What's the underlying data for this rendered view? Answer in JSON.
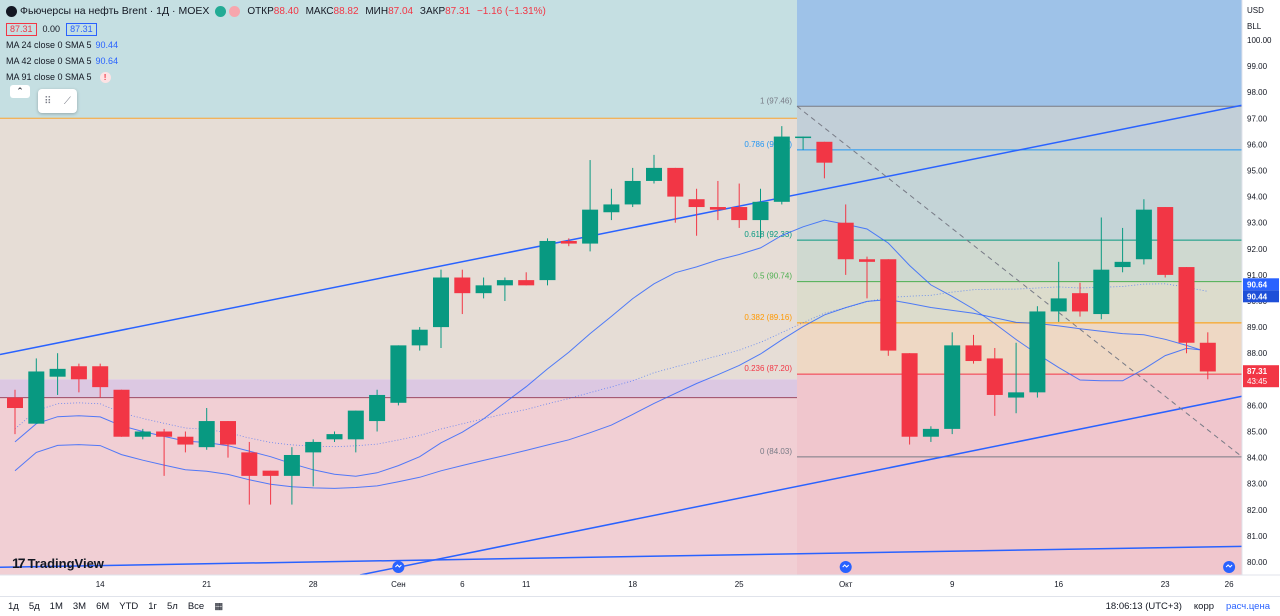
{
  "header": {
    "title": "Фьючерсы на нефть Brent · 1Д · MOEX",
    "ohlc": [
      {
        "label": "ОТКР",
        "value": "88.40"
      },
      {
        "label": "МАКС",
        "value": "88.82"
      },
      {
        "label": "МИН",
        "value": "87.04"
      },
      {
        "label": "ЗАКР",
        "value": "87.31"
      }
    ],
    "change": "−1.16 (−1.31%)",
    "bid": "87.31",
    "spread": "0.00",
    "ask": "87.31"
  },
  "indicators": [
    {
      "label": "MA 24 close 0 SMA 5",
      "value": "90.44"
    },
    {
      "label": "MA 42 close 0 SMA 5",
      "value": "90.64"
    },
    {
      "label": "MA 91 close 0 SMA 5",
      "value": "!"
    }
  ],
  "axis": {
    "currency": "USD",
    "unit": "BLL",
    "ticks": [
      "100.00",
      "99.00",
      "98.00",
      "97.00",
      "96.00",
      "95.00",
      "94.00",
      "93.00",
      "92.00",
      "91.00",
      "90.00",
      "89.00",
      "88.00",
      "87.00",
      "86.00",
      "85.00",
      "84.00",
      "83.00",
      "82.00",
      "81.00",
      "80.00"
    ],
    "last_price": "87.31",
    "countdown": "43:45",
    "ma_label_1": "90.64",
    "ma_label_2": "90.44"
  },
  "xaxis": {
    "labels": [
      {
        "text": "14",
        "i": 4
      },
      {
        "text": "21",
        "i": 9
      },
      {
        "text": "28",
        "i": 14
      },
      {
        "text": "Сен",
        "i": 18
      },
      {
        "text": "6",
        "i": 21
      },
      {
        "text": "11",
        "i": 24
      },
      {
        "text": "18",
        "i": 29
      },
      {
        "text": "25",
        "i": 34
      },
      {
        "text": "Окт",
        "i": 39
      },
      {
        "text": "9",
        "i": 44
      },
      {
        "text": "16",
        "i": 49
      },
      {
        "text": "23",
        "i": 54
      },
      {
        "text": "26",
        "i": 57
      }
    ]
  },
  "fib_labels": [
    {
      "text": "1 (97.46)",
      "color": "#787b86"
    },
    {
      "text": "0.786 (95.79)",
      "color": "#2196f3"
    },
    {
      "text": "0.618 (92.33)",
      "color": "#089981"
    },
    {
      "text": "0.5 (90.74)",
      "color": "#4caf50"
    },
    {
      "text": "0.382 (89.16)",
      "color": "#ff9800"
    },
    {
      "text": "0.236 (87.20)",
      "color": "#f23645"
    },
    {
      "text": "0 (84.03)",
      "color": "#787b86"
    }
  ],
  "chart_data": {
    "type": "candlestick",
    "ylim": [
      79.6,
      100.6
    ],
    "candles": [
      {
        "o": 86.3,
        "h": 86.6,
        "l": 84.9,
        "c": 85.9
      },
      {
        "o": 85.3,
        "h": 87.8,
        "l": 85.3,
        "c": 87.3
      },
      {
        "o": 87.1,
        "h": 88.0,
        "l": 86.4,
        "c": 87.4
      },
      {
        "o": 87.5,
        "h": 87.6,
        "l": 86.5,
        "c": 87.0
      },
      {
        "o": 87.5,
        "h": 87.6,
        "l": 86.3,
        "c": 86.7
      },
      {
        "o": 86.6,
        "h": 86.6,
        "l": 84.8,
        "c": 84.8
      },
      {
        "o": 84.8,
        "h": 85.1,
        "l": 84.7,
        "c": 85.0
      },
      {
        "o": 85.0,
        "h": 85.1,
        "l": 83.3,
        "c": 84.8
      },
      {
        "o": 84.8,
        "h": 85.0,
        "l": 84.2,
        "c": 84.5
      },
      {
        "o": 84.4,
        "h": 85.9,
        "l": 84.3,
        "c": 85.4
      },
      {
        "o": 85.4,
        "h": 85.4,
        "l": 84.0,
        "c": 84.5
      },
      {
        "o": 84.2,
        "h": 84.6,
        "l": 82.2,
        "c": 83.3
      },
      {
        "o": 83.5,
        "h": 83.5,
        "l": 82.2,
        "c": 83.3
      },
      {
        "o": 83.3,
        "h": 84.4,
        "l": 82.2,
        "c": 84.1
      },
      {
        "o": 84.2,
        "h": 84.7,
        "l": 82.9,
        "c": 84.6
      },
      {
        "o": 84.7,
        "h": 85.0,
        "l": 84.6,
        "c": 84.9
      },
      {
        "o": 84.7,
        "h": 85.8,
        "l": 84.2,
        "c": 85.8
      },
      {
        "o": 85.4,
        "h": 86.6,
        "l": 85.0,
        "c": 86.4
      },
      {
        "o": 86.1,
        "h": 88.3,
        "l": 86.0,
        "c": 88.3
      },
      {
        "o": 88.3,
        "h": 89.0,
        "l": 88.1,
        "c": 88.9
      },
      {
        "o": 89.0,
        "h": 91.2,
        "l": 88.2,
        "c": 90.9
      },
      {
        "o": 90.9,
        "h": 91.2,
        "l": 89.5,
        "c": 90.3
      },
      {
        "o": 90.3,
        "h": 90.9,
        "l": 90.1,
        "c": 90.6
      },
      {
        "o": 90.6,
        "h": 90.9,
        "l": 90.0,
        "c": 90.8
      },
      {
        "o": 90.8,
        "h": 91.1,
        "l": 90.6,
        "c": 90.6
      },
      {
        "o": 90.8,
        "h": 92.4,
        "l": 90.6,
        "c": 92.3
      },
      {
        "o": 92.3,
        "h": 92.4,
        "l": 92.1,
        "c": 92.2
      },
      {
        "o": 92.2,
        "h": 95.4,
        "l": 91.9,
        "c": 93.5
      },
      {
        "o": 93.4,
        "h": 94.3,
        "l": 93.1,
        "c": 93.7
      },
      {
        "o": 93.7,
        "h": 95.1,
        "l": 93.6,
        "c": 94.6
      },
      {
        "o": 94.6,
        "h": 95.6,
        "l": 94.5,
        "c": 95.1
      },
      {
        "o": 95.1,
        "h": 95.1,
        "l": 93.0,
        "c": 94.0
      },
      {
        "o": 93.9,
        "h": 94.3,
        "l": 92.5,
        "c": 93.6
      },
      {
        "o": 93.6,
        "h": 94.6,
        "l": 93.1,
        "c": 93.5
      },
      {
        "o": 93.6,
        "h": 94.5,
        "l": 92.8,
        "c": 93.1
      },
      {
        "o": 93.1,
        "h": 94.3,
        "l": 92.4,
        "c": 93.8
      },
      {
        "o": 93.8,
        "h": 96.7,
        "l": 93.7,
        "c": 96.3
      },
      {
        "o": 96.3,
        "h": 96.3,
        "l": 95.8,
        "c": 96.3
      },
      {
        "o": 96.1,
        "h": 96.1,
        "l": 94.7,
        "c": 95.3
      },
      {
        "o": 93.0,
        "h": 93.7,
        "l": 91.0,
        "c": 91.6
      },
      {
        "o": 91.6,
        "h": 91.7,
        "l": 90.1,
        "c": 91.5
      },
      {
        "o": 91.6,
        "h": 91.6,
        "l": 87.9,
        "c": 88.1
      },
      {
        "o": 88.0,
        "h": 88.0,
        "l": 84.5,
        "c": 84.8
      },
      {
        "o": 84.8,
        "h": 85.2,
        "l": 84.6,
        "c": 85.1
      },
      {
        "o": 85.1,
        "h": 88.8,
        "l": 84.9,
        "c": 88.3
      },
      {
        "o": 88.3,
        "h": 88.7,
        "l": 87.6,
        "c": 87.7
      },
      {
        "o": 87.8,
        "h": 88.2,
        "l": 85.6,
        "c": 86.4
      },
      {
        "o": 86.3,
        "h": 88.4,
        "l": 85.7,
        "c": 86.5
      },
      {
        "o": 86.5,
        "h": 89.8,
        "l": 86.3,
        "c": 89.6
      },
      {
        "o": 89.6,
        "h": 91.5,
        "l": 89.2,
        "c": 90.1
      },
      {
        "o": 90.3,
        "h": 90.7,
        "l": 89.4,
        "c": 89.6
      },
      {
        "o": 89.5,
        "h": 93.2,
        "l": 89.3,
        "c": 91.2
      },
      {
        "o": 91.3,
        "h": 92.8,
        "l": 91.1,
        "c": 91.5
      },
      {
        "o": 91.6,
        "h": 93.9,
        "l": 91.4,
        "c": 93.5
      },
      {
        "o": 93.6,
        "h": 93.6,
        "l": 90.9,
        "c": 91.0
      },
      {
        "o": 91.3,
        "h": 91.3,
        "l": 88.0,
        "c": 88.4
      },
      {
        "o": 88.4,
        "h": 88.8,
        "l": 87.0,
        "c": 87.3
      }
    ]
  }
}
